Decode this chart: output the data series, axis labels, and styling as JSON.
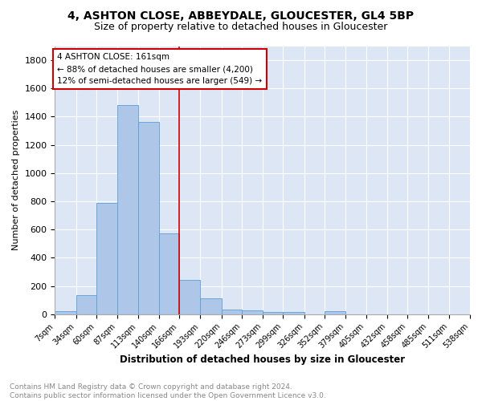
{
  "title1": "4, ASHTON CLOSE, ABBEYDALE, GLOUCESTER, GL4 5BP",
  "title2": "Size of property relative to detached houses in Gloucester",
  "xlabel": "Distribution of detached houses by size in Gloucester",
  "ylabel": "Number of detached properties",
  "annotation_line1": "4 ASHTON CLOSE: 161sqm",
  "annotation_line2": "← 88% of detached houses are smaller (4,200)",
  "annotation_line3": "12% of semi-detached houses are larger (549) →",
  "footer1": "Contains HM Land Registry data © Crown copyright and database right 2024.",
  "footer2": "Contains public sector information licensed under the Open Government Licence v3.0.",
  "bins": [
    7,
    34,
    60,
    87,
    113,
    140,
    166,
    193,
    220,
    246,
    273,
    299,
    326,
    352,
    379,
    405,
    432,
    458,
    485,
    511,
    538
  ],
  "counts": [
    20,
    135,
    790,
    1480,
    1365,
    575,
    245,
    115,
    35,
    25,
    15,
    15,
    0,
    20,
    0,
    0,
    0,
    0,
    0,
    0
  ],
  "bar_color": "#aec6e8",
  "bar_edge_color": "#5a9fd4",
  "vline_x": 166,
  "vline_color": "#cc0000",
  "annotation_box_color": "#ffffff",
  "annotation_box_edge": "#cc0000",
  "background_color": "#dce6f5",
  "ylim": [
    0,
    1900
  ],
  "yticks": [
    0,
    200,
    400,
    600,
    800,
    1000,
    1200,
    1400,
    1600,
    1800
  ],
  "title1_fontsize": 10,
  "title2_fontsize": 9,
  "footer_fontsize": 6.5,
  "ylabel_fontsize": 8,
  "xlabel_fontsize": 8.5,
  "tick_fontsize": 7,
  "annot_fontsize": 7.5
}
